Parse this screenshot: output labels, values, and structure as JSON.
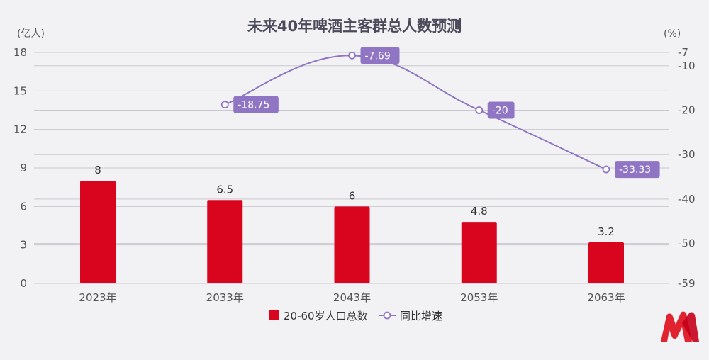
{
  "chart_data": {
    "type": "bar",
    "title": "未来40年啤酒主客群总人数预测",
    "categories": [
      "2023年",
      "2033年",
      "2043年",
      "2053年",
      "2063年"
    ],
    "series": [
      {
        "name": "20-60岁人口总数",
        "type": "bar",
        "axis": "left",
        "color": "#d9041d",
        "values": [
          8,
          6.5,
          6,
          4.8,
          3.2
        ],
        "labels": [
          "8",
          "6.5",
          "6",
          "4.8",
          "3.2"
        ]
      },
      {
        "name": "同比增速",
        "type": "line",
        "axis": "right",
        "color": "#8f75c4",
        "values": [
          null,
          -18.75,
          -7.69,
          -20,
          -33.33
        ],
        "labels": [
          "",
          "-18.75",
          "-7.69",
          "-20",
          "-33.33"
        ]
      }
    ],
    "left_axis": {
      "unit": "(亿人)",
      "ylim": [
        0,
        18
      ],
      "ticks": [
        0,
        3,
        6,
        9,
        12,
        15,
        18
      ],
      "tick_labels": [
        "0",
        "3",
        "6",
        "9",
        "12",
        "15",
        "18"
      ]
    },
    "right_axis": {
      "unit": "(%)",
      "ylim": [
        -59,
        -7
      ],
      "ticks": [
        -59,
        -50,
        -40,
        -30,
        -20,
        -10,
        -7
      ],
      "tick_labels": [
        "-59",
        "-50",
        "-40",
        "-30",
        "-20",
        "-10",
        "-7"
      ]
    },
    "grid": true,
    "legend_position": "bottom"
  },
  "colors": {
    "background": "#f2f2f4",
    "grid": "#c9c9cf",
    "logo_red": "#e0232e"
  },
  "logo": {
    "icon": "brand-logo-icon"
  }
}
